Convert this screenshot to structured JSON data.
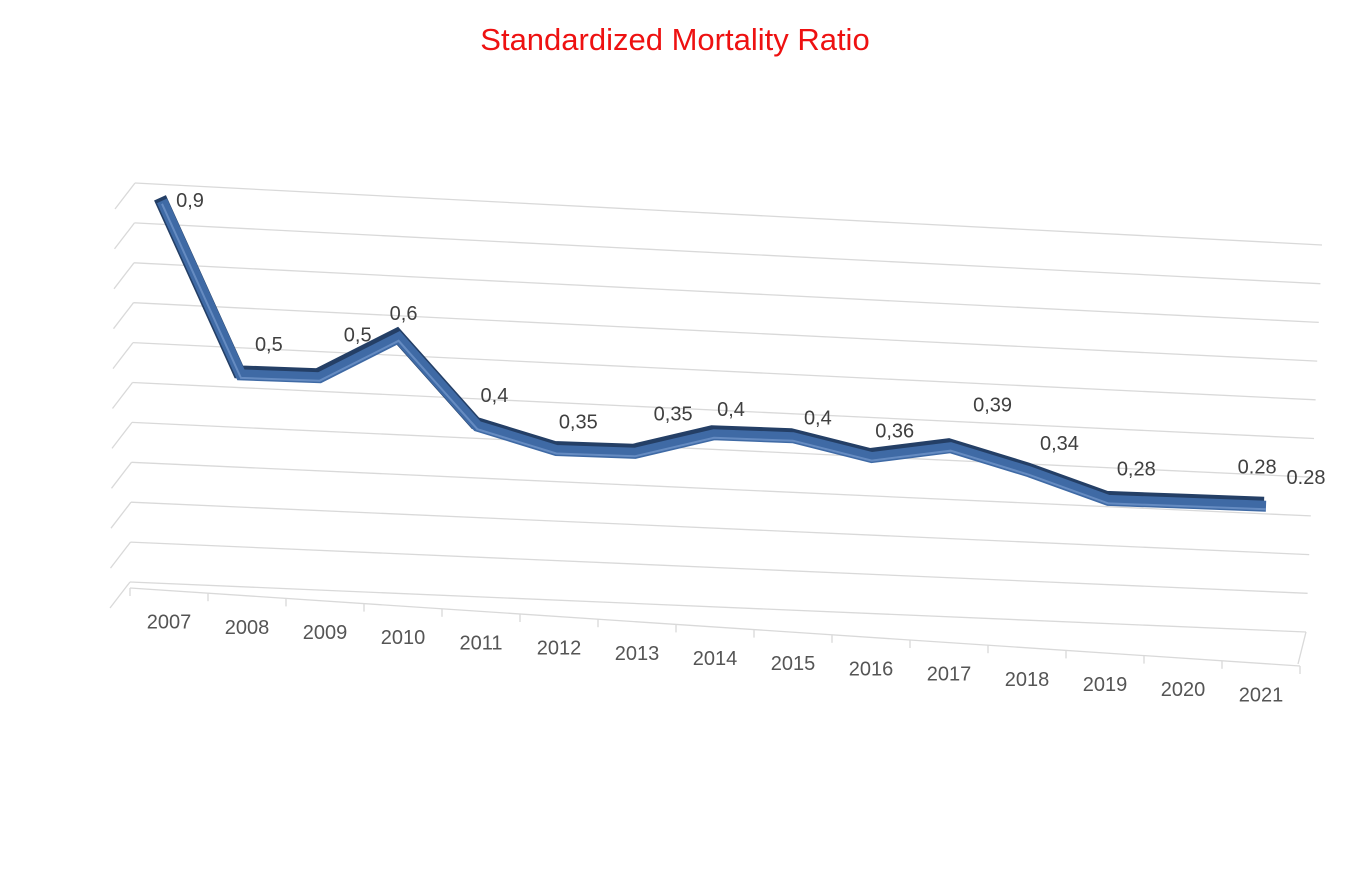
{
  "chart_data": {
    "type": "line",
    "title": "Standardized Mortality Ratio",
    "categories": [
      "2007",
      "2008",
      "2009",
      "2010",
      "2011",
      "2012",
      "2013",
      "2014",
      "2015",
      "2016",
      "2017",
      "2018",
      "2019",
      "2020",
      "2021"
    ],
    "values": [
      0.9,
      0.5,
      0.5,
      0.6,
      0.4,
      0.35,
      0.35,
      0.4,
      0.4,
      0.36,
      0.39,
      0.34,
      0.28,
      0.28,
      0.28
    ],
    "data_labels": [
      "0,9",
      "0,5",
      "0,5",
      "0,6",
      "0,4",
      "0,35",
      "0,35",
      "0,4",
      "0,4",
      "0,36",
      "0,39",
      "0,34",
      "0,28",
      "0.28",
      "0.28"
    ],
    "ylim": [
      0,
      1
    ],
    "grid": true,
    "perspective": "3d",
    "colors": {
      "line": "#3f6aa5",
      "line_shadow": "#243f66",
      "title": "#ee1111",
      "grid": "#d9d9d9"
    }
  }
}
